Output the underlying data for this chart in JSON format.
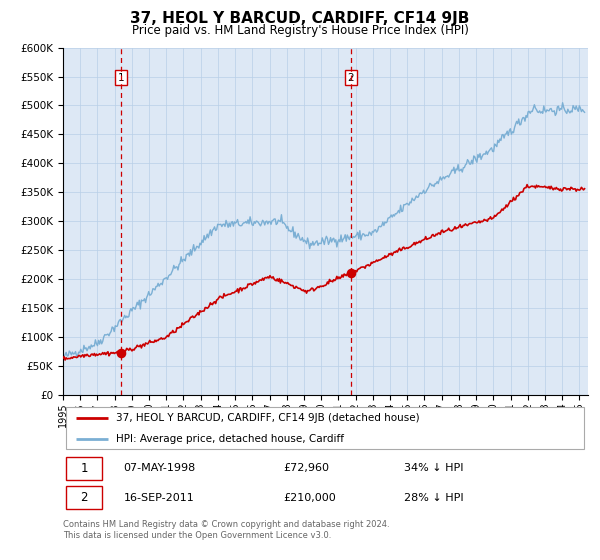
{
  "title": "37, HEOL Y BARCUD, CARDIFF, CF14 9JB",
  "subtitle": "Price paid vs. HM Land Registry's House Price Index (HPI)",
  "legend_label_red": "37, HEOL Y BARCUD, CARDIFF, CF14 9JB (detached house)",
  "legend_label_blue": "HPI: Average price, detached house, Cardiff",
  "transaction1_date": "07-MAY-1998",
  "transaction1_price": "£72,960",
  "transaction1_hpi": "34% ↓ HPI",
  "transaction2_date": "16-SEP-2011",
  "transaction2_price": "£210,000",
  "transaction2_hpi": "28% ↓ HPI",
  "footer": "Contains HM Land Registry data © Crown copyright and database right 2024.\nThis data is licensed under the Open Government Licence v3.0.",
  "ylim": [
    0,
    600000
  ],
  "yticks": [
    0,
    50000,
    100000,
    150000,
    200000,
    250000,
    300000,
    350000,
    400000,
    450000,
    500000,
    550000,
    600000
  ],
  "red_color": "#cc0000",
  "blue_color": "#7bafd4",
  "dashed_red": "#cc0000",
  "marker_color": "#cc0000",
  "transaction1_x": 1998.35,
  "transaction1_y": 72960,
  "transaction2_x": 2011.71,
  "transaction2_y": 210000,
  "plot_bg_color": "#dde8f5",
  "grid_color": "#b8cfe8",
  "xlim_left": 1995.0,
  "xlim_right": 2025.5
}
